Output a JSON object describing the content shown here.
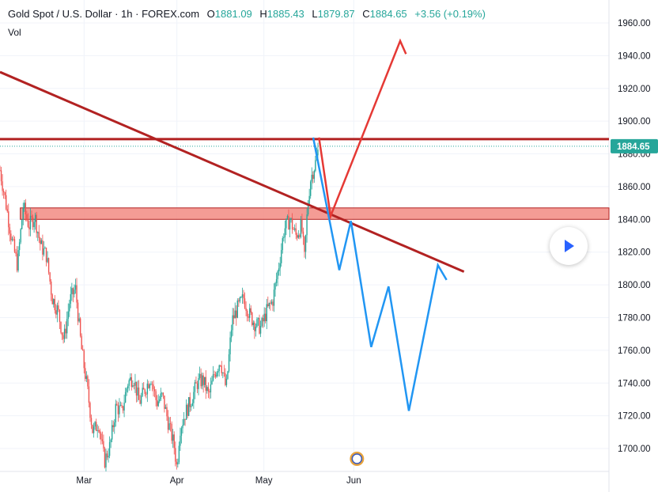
{
  "header": {
    "symbol_title": "Gold Spot / U.S. Dollar · 1h · FOREX.com",
    "open_label": "O",
    "open_value": "1881.09",
    "high_label": "H",
    "high_value": "1885.43",
    "low_label": "L",
    "low_value": "1879.87",
    "close_label": "C",
    "close_value": "1884.65",
    "change": "+3.56 (+0.19%)",
    "vol_label": "Vol"
  },
  "colors": {
    "up": "#26a69a",
    "down": "#ef5350",
    "trendline": "#b22222",
    "zone": "#f28b82",
    "bull_path": "#e53935",
    "bear_path": "#2196f3",
    "price_tag": "#26a69a",
    "accent": "#2962ff"
  },
  "chart_data": {
    "type": "candlestick",
    "title": "Gold Spot / U.S. Dollar · 1h · FOREX.com",
    "y_axis": {
      "ticks": [
        "1960.00",
        "1940.00",
        "1920.00",
        "1900.00",
        "1880.00",
        "1860.00",
        "1840.00",
        "1820.00",
        "1800.00",
        "1780.00",
        "1760.00",
        "1740.00",
        "1720.00",
        "1700.00"
      ],
      "range": [
        1686,
        1974
      ],
      "current_price": "1884.65"
    },
    "x_axis": {
      "ticks": [
        "Mar",
        "Apr",
        "May",
        "Jun"
      ],
      "tick_days": [
        29,
        61,
        91,
        122
      ],
      "range_days": [
        0,
        210
      ]
    },
    "price_path": [
      [
        0,
        1870
      ],
      [
        2,
        1850
      ],
      [
        4,
        1828
      ],
      [
        6,
        1812
      ],
      [
        8,
        1848
      ],
      [
        10,
        1836
      ],
      [
        12,
        1842
      ],
      [
        14,
        1824
      ],
      [
        16,
        1818
      ],
      [
        18,
        1792
      ],
      [
        20,
        1784
      ],
      [
        22,
        1766
      ],
      [
        24,
        1790
      ],
      [
        26,
        1798
      ],
      [
        28,
        1762
      ],
      [
        30,
        1738
      ],
      [
        32,
        1710
      ],
      [
        34,
        1716
      ],
      [
        36,
        1692
      ],
      [
        38,
        1702
      ],
      [
        40,
        1726
      ],
      [
        42,
        1722
      ],
      [
        44,
        1740
      ],
      [
        46,
        1744
      ],
      [
        48,
        1728
      ],
      [
        50,
        1736
      ],
      [
        52,
        1744
      ],
      [
        54,
        1728
      ],
      [
        56,
        1732
      ],
      [
        58,
        1716
      ],
      [
        60,
        1702
      ],
      [
        61,
        1688
      ],
      [
        62,
        1712
      ],
      [
        64,
        1722
      ],
      [
        66,
        1730
      ],
      [
        68,
        1740
      ],
      [
        70,
        1742
      ],
      [
        72,
        1732
      ],
      [
        74,
        1746
      ],
      [
        76,
        1754
      ],
      [
        78,
        1736
      ],
      [
        80,
        1778
      ],
      [
        82,
        1786
      ],
      [
        84,
        1792
      ],
      [
        86,
        1782
      ],
      [
        88,
        1776
      ],
      [
        90,
        1774
      ],
      [
        92,
        1784
      ],
      [
        94,
        1790
      ],
      [
        96,
        1810
      ],
      [
        98,
        1834
      ],
      [
        100,
        1840
      ],
      [
        102,
        1830
      ],
      [
        104,
        1836
      ],
      [
        105,
        1816
      ],
      [
        106,
        1846
      ],
      [
        107,
        1864
      ],
      [
        108,
        1870
      ],
      [
        109,
        1876
      ],
      [
        110,
        1884.65
      ]
    ],
    "resistance_line": {
      "price": 1889,
      "day_range": [
        0,
        210
      ]
    },
    "falling_trendline": {
      "points": [
        [
          0,
          1930
        ],
        [
          160,
          1808
        ]
      ]
    },
    "support_zone": {
      "price_range": [
        1840,
        1847
      ],
      "day_range": [
        7,
        210
      ]
    },
    "bull_scenario": [
      [
        110,
        1890
      ],
      [
        114,
        1842
      ],
      [
        138,
        1949
      ],
      [
        140,
        1941
      ]
    ],
    "bear_scenario": [
      [
        108,
        1890
      ],
      [
        117,
        1809
      ],
      [
        121,
        1839
      ],
      [
        128,
        1762
      ],
      [
        134,
        1799
      ],
      [
        141,
        1723
      ],
      [
        151,
        1812
      ],
      [
        154,
        1803
      ]
    ]
  }
}
